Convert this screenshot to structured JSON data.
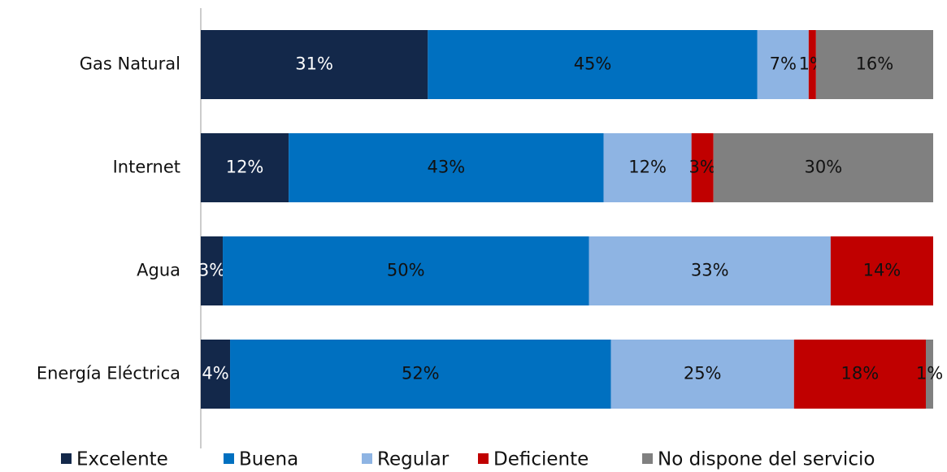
{
  "chart_data": {
    "type": "stacked_barh",
    "categories": [
      "Gas Natural",
      "Internet",
      "Agua",
      "Energía Eléctrica"
    ],
    "xlim": [
      0,
      100
    ],
    "series": [
      {
        "name": "Excelente",
        "color": "#13284a",
        "label_color": "#ffffff",
        "values": [
          31,
          12,
          3,
          4
        ],
        "value_labels": [
          "31%",
          "12%",
          "3%",
          "4%"
        ]
      },
      {
        "name": "Buena",
        "color": "#0070c0",
        "label_color": "#111111",
        "values": [
          45,
          43,
          50,
          52
        ],
        "value_labels": [
          "45%",
          "43%",
          "50%",
          "52%"
        ]
      },
      {
        "name": "Regular",
        "color": "#8eb4e3",
        "label_color": "#111111",
        "values": [
          7,
          12,
          33,
          25
        ],
        "value_labels": [
          "7%",
          "12%",
          "33%",
          "25%"
        ]
      },
      {
        "name": "Deficiente",
        "color": "#c00000",
        "label_color": "#111111",
        "values": [
          1,
          3,
          14,
          18
        ],
        "value_labels": [
          "1%",
          "3%",
          "14%",
          "18%"
        ]
      },
      {
        "name": "No dispone del servicio",
        "color": "#808080",
        "label_color": "#111111",
        "values": [
          16,
          30,
          null,
          1
        ],
        "value_labels": [
          "16%",
          "30%",
          null,
          "1%"
        ]
      }
    ],
    "legend": "bottom"
  }
}
